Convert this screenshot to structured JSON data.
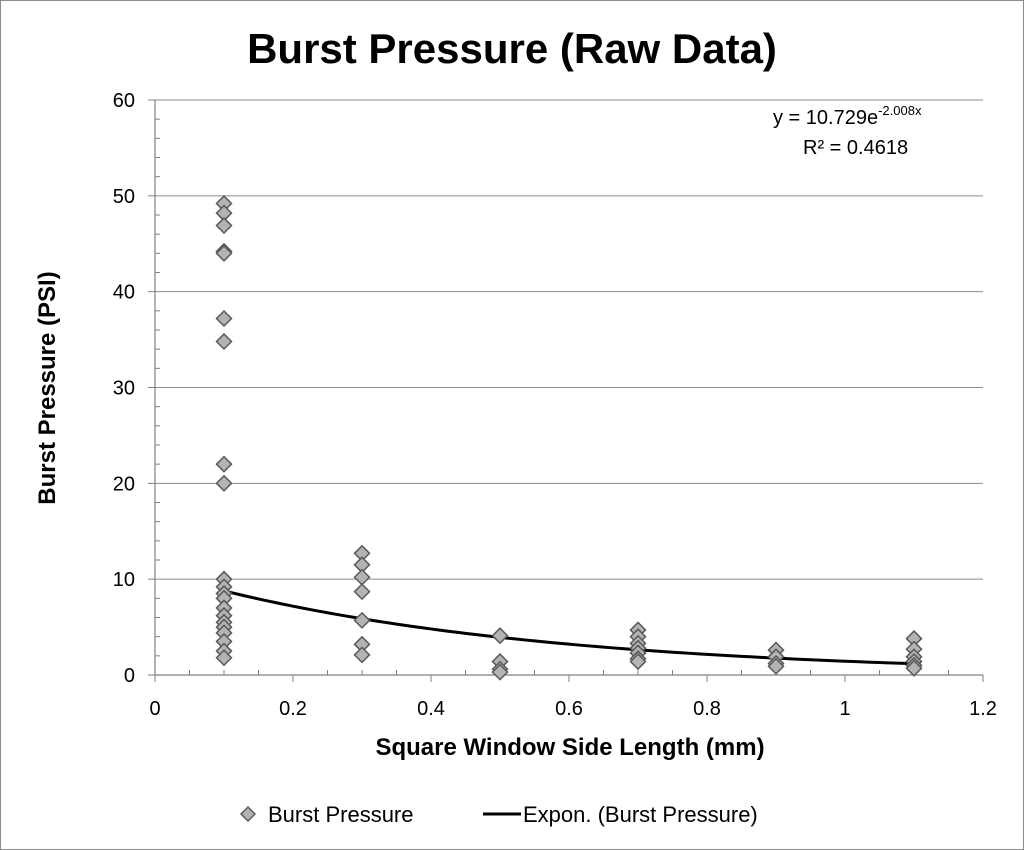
{
  "chart_data": {
    "type": "scatter",
    "title": "Burst Pressure (Raw Data)",
    "xlabel": "Square Window Side Length (mm)",
    "ylabel": "Burst Pressure (PSI)",
    "xlim": [
      0,
      1.2
    ],
    "ylim": [
      0,
      60
    ],
    "x_ticks": [
      "0",
      "0.2",
      "0.4",
      "0.6",
      "0.8",
      "1",
      "1.2"
    ],
    "y_ticks": [
      "0",
      "10",
      "20",
      "30",
      "40",
      "50",
      "60"
    ],
    "grid": "horizontal major gridlines",
    "legend_placement": "bottom",
    "series": [
      {
        "name": "Burst Pressure",
        "marker": "diamond",
        "color": "#b3b3b3",
        "points": [
          [
            0.1,
            49.2
          ],
          [
            0.1,
            48.2
          ],
          [
            0.1,
            46.9
          ],
          [
            0.1,
            44.2
          ],
          [
            0.1,
            44.0
          ],
          [
            0.1,
            37.2
          ],
          [
            0.1,
            34.8
          ],
          [
            0.1,
            22.0
          ],
          [
            0.1,
            20.0
          ],
          [
            0.1,
            10.0
          ],
          [
            0.1,
            9.2
          ],
          [
            0.1,
            8.5
          ],
          [
            0.1,
            8.0
          ],
          [
            0.1,
            7.0
          ],
          [
            0.1,
            6.2
          ],
          [
            0.1,
            5.5
          ],
          [
            0.1,
            5.0
          ],
          [
            0.1,
            4.4
          ],
          [
            0.1,
            3.5
          ],
          [
            0.1,
            2.5
          ],
          [
            0.1,
            1.8
          ],
          [
            0.3,
            12.7
          ],
          [
            0.3,
            11.5
          ],
          [
            0.3,
            10.2
          ],
          [
            0.3,
            8.7
          ],
          [
            0.3,
            5.7
          ],
          [
            0.3,
            3.2
          ],
          [
            0.3,
            2.1
          ],
          [
            0.5,
            4.1
          ],
          [
            0.5,
            1.4
          ],
          [
            0.5,
            0.6
          ],
          [
            0.5,
            0.3
          ],
          [
            0.7,
            4.7
          ],
          [
            0.7,
            4.0
          ],
          [
            0.7,
            3.3
          ],
          [
            0.7,
            2.8
          ],
          [
            0.7,
            2.3
          ],
          [
            0.7,
            1.7
          ],
          [
            0.7,
            1.4
          ],
          [
            0.9,
            2.6
          ],
          [
            0.9,
            1.9
          ],
          [
            0.9,
            1.2
          ],
          [
            0.9,
            0.9
          ],
          [
            1.1,
            3.8
          ],
          [
            1.1,
            2.7
          ],
          [
            1.1,
            1.9
          ],
          [
            1.1,
            1.4
          ],
          [
            1.1,
            1.0
          ],
          [
            1.1,
            0.7
          ]
        ]
      },
      {
        "name": "Expon. (Burst Pressure)",
        "kind": "trendline",
        "color": "#000000",
        "a": 10.729,
        "b": -2.008,
        "x_range": [
          0.1,
          1.1
        ]
      }
    ],
    "annotations": {
      "equation_prefix": "y = 10.729e",
      "equation_exponent": "-2.008x",
      "r_squared": "R² = 0.4618"
    }
  }
}
